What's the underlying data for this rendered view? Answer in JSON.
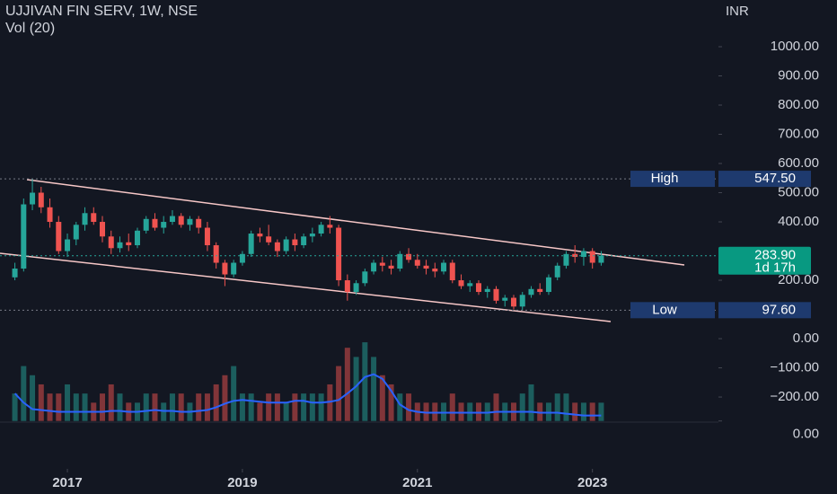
{
  "chart_data": {
    "type": "candlestick",
    "title": "UJJIVAN FIN SERV, 1W, NSE",
    "subtitle": "Vol (20)",
    "currency": "INR",
    "up_color": "#26a69a",
    "down_color": "#ef5350",
    "xlim": [
      2016.23,
      2024.44
    ],
    "xticks": [
      2017,
      2019,
      2021,
      2023
    ],
    "ylim": [
      -286,
      1160
    ],
    "yticks": [
      {
        "value": 1000,
        "label": "1000.00"
      },
      {
        "value": 900,
        "label": "900.00"
      },
      {
        "value": 800,
        "label": "800.00"
      },
      {
        "value": 700,
        "label": "700.00"
      },
      {
        "value": 600,
        "label": "600.00"
      },
      {
        "value": 500,
        "label": "500.00"
      },
      {
        "value": 400,
        "label": "400.00"
      },
      {
        "value": 200,
        "label": "200.00"
      },
      {
        "value": 0,
        "label": "0.00"
      },
      {
        "value": -100,
        "label": "−100.00"
      },
      {
        "value": -200,
        "label": "−200.00"
      }
    ],
    "y2lim": [
      -1.5,
      9
    ],
    "y2ticks": [
      {
        "value": 0,
        "label": "0.00"
      }
    ],
    "x": [
      2016.4,
      2016.5,
      2016.6,
      2016.7,
      2016.8,
      2016.9,
      2017.0,
      2017.1,
      2017.2,
      2017.3,
      2017.4,
      2017.5,
      2017.6,
      2017.7,
      2017.8,
      2017.9,
      2018.0,
      2018.1,
      2018.2,
      2018.3,
      2018.4,
      2018.5,
      2018.6,
      2018.7,
      2018.8,
      2018.9,
      2019.0,
      2019.1,
      2019.2,
      2019.3,
      2019.4,
      2019.5,
      2019.6,
      2019.7,
      2019.8,
      2019.9,
      2020.0,
      2020.1,
      2020.2,
      2020.3,
      2020.4,
      2020.5,
      2020.6,
      2020.7,
      2020.8,
      2020.9,
      2021.0,
      2021.1,
      2021.2,
      2021.3,
      2021.4,
      2021.5,
      2021.6,
      2021.7,
      2021.8,
      2021.9,
      2022.0,
      2022.1,
      2022.2,
      2022.3,
      2022.4,
      2022.5,
      2022.6,
      2022.7,
      2022.8,
      2022.9,
      2023.0,
      2023.1
    ],
    "open": [
      210,
      240,
      460,
      500,
      450,
      400,
      300,
      340,
      390,
      430,
      400,
      350,
      310,
      330,
      320,
      370,
      410,
      380,
      400,
      420,
      390,
      410,
      380,
      320,
      260,
      220,
      260,
      290,
      360,
      350,
      330,
      300,
      340,
      320,
      350,
      360,
      390,
      380,
      200,
      160,
      190,
      230,
      260,
      250,
      240,
      290,
      270,
      250,
      240,
      230,
      260,
      200,
      180,
      190,
      160,
      170,
      130,
      140,
      110,
      150,
      170,
      160,
      210,
      250,
      290,
      280,
      300,
      260
    ],
    "high": [
      260,
      480,
      548,
      520,
      480,
      420,
      360,
      400,
      450,
      450,
      420,
      370,
      350,
      360,
      380,
      420,
      430,
      420,
      440,
      430,
      420,
      420,
      400,
      330,
      270,
      270,
      300,
      370,
      380,
      390,
      340,
      350,
      360,
      360,
      380,
      400,
      420,
      390,
      220,
      200,
      240,
      270,
      280,
      270,
      300,
      310,
      290,
      270,
      260,
      270,
      270,
      220,
      200,
      200,
      180,
      180,
      150,
      150,
      160,
      180,
      190,
      220,
      260,
      300,
      320,
      310,
      310,
      300
    ],
    "low": [
      200,
      230,
      440,
      430,
      380,
      290,
      280,
      320,
      370,
      390,
      330,
      290,
      295,
      300,
      310,
      360,
      370,
      360,
      390,
      380,
      370,
      360,
      300,
      240,
      180,
      210,
      250,
      280,
      330,
      320,
      280,
      290,
      300,
      310,
      330,
      350,
      360,
      180,
      130,
      150,
      180,
      220,
      230,
      220,
      230,
      260,
      240,
      220,
      210,
      220,
      190,
      170,
      160,
      150,
      140,
      120,
      110,
      100,
      98,
      140,
      150,
      150,
      200,
      240,
      260,
      250,
      240,
      250
    ],
    "close": [
      240,
      460,
      500,
      450,
      400,
      300,
      340,
      390,
      430,
      400,
      350,
      310,
      330,
      320,
      370,
      410,
      380,
      400,
      420,
      390,
      410,
      380,
      320,
      260,
      220,
      260,
      290,
      360,
      350,
      330,
      300,
      340,
      320,
      350,
      360,
      390,
      380,
      200,
      160,
      190,
      230,
      260,
      250,
      240,
      290,
      270,
      250,
      240,
      230,
      260,
      200,
      180,
      190,
      160,
      170,
      130,
      140,
      110,
      150,
      170,
      160,
      210,
      250,
      290,
      280,
      300,
      260,
      284
    ],
    "volume": [
      3,
      6,
      5,
      4,
      3,
      3,
      4,
      3,
      3,
      2,
      3,
      4,
      3,
      2,
      2,
      3,
      3,
      2,
      3,
      3,
      2,
      3,
      3,
      4,
      5,
      6,
      3,
      3,
      2,
      3,
      3,
      2,
      3,
      3,
      3,
      3,
      4,
      6,
      8,
      7,
      8.6,
      7,
      5,
      4,
      3,
      3,
      2,
      2,
      2,
      2,
      3,
      2,
      2,
      2,
      2,
      3,
      2,
      2,
      3,
      4,
      2,
      2,
      3,
      3,
      2,
      2,
      2,
      2
    ],
    "volume_ma": [
      3.0,
      2.0,
      1.3,
      1.2,
      1.1,
      1.0,
      1.0,
      1.0,
      1.0,
      1.0,
      1.0,
      1.1,
      1.1,
      1.0,
      1.0,
      1.1,
      1.2,
      1.1,
      1.1,
      1.0,
      1.0,
      1.1,
      1.2,
      1.5,
      1.9,
      2.2,
      2.3,
      2.2,
      2.1,
      2.0,
      2.0,
      2.0,
      2.2,
      2.2,
      2.0,
      2.0,
      2.1,
      2.3,
      3.0,
      3.8,
      4.8,
      5.1,
      4.6,
      3.3,
      1.8,
      1.2,
      1.0,
      0.9,
      0.9,
      0.9,
      0.9,
      0.9,
      0.9,
      0.9,
      0.9,
      1.0,
      1.0,
      1.0,
      1.0,
      1.0,
      0.9,
      0.9,
      0.9,
      0.8,
      0.7,
      0.6,
      0.6,
      0.6
    ],
    "volume_ma_color": "#2962ff",
    "price_labels": {
      "names": [
        "High",
        "Low"
      ],
      "values": [
        547.5,
        97.6
      ],
      "value_labels": [
        "547.50",
        "97.60"
      ]
    },
    "last_price": {
      "value": 283.9,
      "value_label": "283.90",
      "countdown": "1d 17h"
    }
  }
}
